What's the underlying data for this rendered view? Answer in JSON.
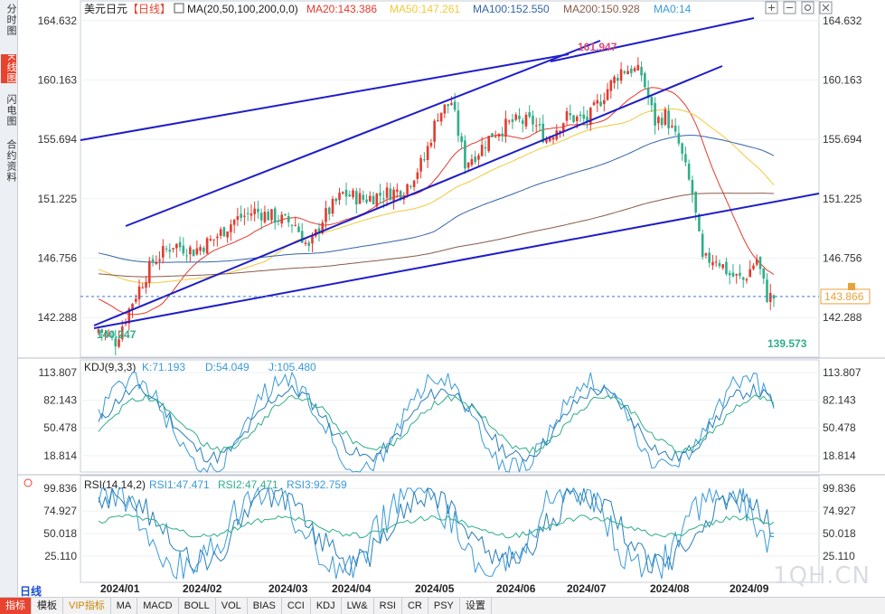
{
  "side_tabs": [
    "分时图",
    "K线图",
    "闪电图",
    "合约资料"
  ],
  "active_side_tab": 1,
  "bottom_tabs": [
    "指标",
    "模板",
    "VIP指标",
    "MA",
    "MACD",
    "BOLL",
    "VOL",
    "BIAS",
    "CCI",
    "KDJ",
    "LW&",
    "RSI",
    "CR",
    "PSY",
    "设置"
  ],
  "active_bottom_tab": 0,
  "period_label": "日线",
  "watermark": "1QH.CN",
  "price_legend": {
    "symbol": "美元日元",
    "period": "【日线】",
    "ma_label": "MA(20,50,100,200,0,0)",
    "items": [
      {
        "text": "MA20:143.386",
        "color": "#e43a2f"
      },
      {
        "text": "MA50:147.261",
        "color": "#f0c93c"
      },
      {
        "text": "MA100:152.550",
        "color": "#3464a8"
      },
      {
        "text": "MA200:150.928",
        "color": "#8a5a4a"
      },
      {
        "text": "MA0:14",
        "color": "#3a9ad9"
      }
    ]
  },
  "kdj_legend": {
    "label": "KDJ(9,3,3)",
    "items": [
      {
        "text": "K:71.193",
        "color": "#3a9ad9"
      },
      {
        "text": "D:54.049",
        "color": "#3a9ad9"
      },
      {
        "text": "J:105.480",
        "color": "#3a9ad9"
      }
    ]
  },
  "rsi_legend": {
    "label": "RSI(14,14,2)",
    "items": [
      {
        "text": "RSI1:47.471",
        "color": "#3a9ad9"
      },
      {
        "text": "RSI2:47.471",
        "color": "#2fae8a"
      },
      {
        "text": "RSI3:92.759",
        "color": "#3a9ad9"
      }
    ]
  },
  "chart_data": [
    {
      "type": "candlestick",
      "title": "美元日元【日线】",
      "y_ticks": [
        "164.632",
        "160.163",
        "155.694",
        "151.225",
        "146.756",
        "142.288"
      ],
      "ylim": [
        139.3,
        165.5
      ],
      "x_labels": [
        "2024/01",
        "2024/02",
        "2024/03",
        "2024/04",
        "2024/05",
        "2024/06",
        "2024/07",
        "2024/08",
        "2024/09"
      ],
      "current_price": "143.866",
      "annotations": {
        "high": "161.947",
        "low": "139.573",
        "start_low": "140.247"
      },
      "colors": {
        "up": "#e43a2f",
        "down": "#2fae8a",
        "trend": "#1e1ec8"
      },
      "moving_averages": [
        "MA20",
        "MA50",
        "MA100",
        "MA200"
      ]
    },
    {
      "type": "line",
      "title": "KDJ(9,3,3)",
      "y_ticks": [
        "113.807",
        "82.143",
        "50.478",
        "18.814"
      ],
      "ylim": [
        0,
        113.807
      ],
      "series": [
        {
          "name": "K",
          "last": 71.193
        },
        {
          "name": "D",
          "last": 54.049
        },
        {
          "name": "J",
          "last": 105.48
        }
      ]
    },
    {
      "type": "line",
      "title": "RSI(14,14,2)",
      "y_ticks": [
        "99.836",
        "74.927",
        "50.018",
        "25.110"
      ],
      "ylim": [
        0,
        100
      ],
      "series": [
        {
          "name": "RSI1",
          "last": 47.471
        },
        {
          "name": "RSI2",
          "last": 47.471
        },
        {
          "name": "RSI3",
          "last": 92.759
        }
      ]
    }
  ]
}
